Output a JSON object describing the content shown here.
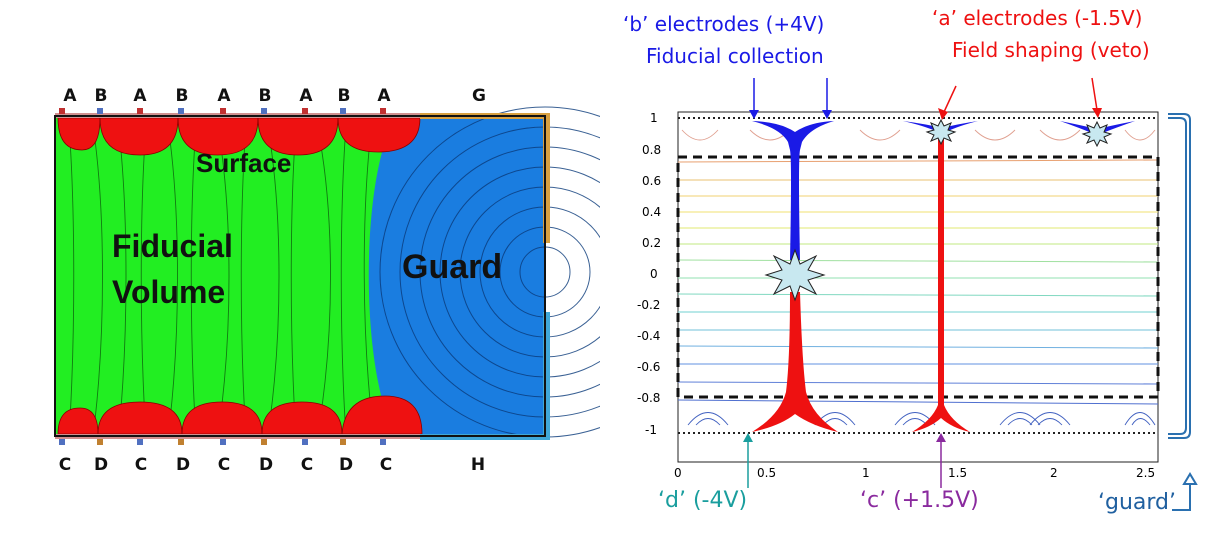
{
  "left_diagram": {
    "top_electrodes": [
      "A",
      "B",
      "A",
      "B",
      "A",
      "B",
      "A",
      "B",
      "A"
    ],
    "top_guard": "G",
    "bottom_electrodes": [
      "C",
      "D",
      "C",
      "D",
      "C",
      "D",
      "C",
      "D",
      "C"
    ],
    "bottom_guard": "H",
    "regions": {
      "surface": "Surface",
      "fiducial_line1": "Fiducial",
      "fiducial_line2": "Volume",
      "guard": "Guard"
    },
    "colors": {
      "fiducial": "#22ee22",
      "guard": "#1a7de0",
      "surface": "#ee1111"
    }
  },
  "right_plot": {
    "b_electrodes_line1": "‘b’ electrodes (+4V)",
    "b_electrodes_line2": "Fiducial collection",
    "a_electrodes_line1": "‘a’ electrodes (-1.5V)",
    "a_electrodes_line2": "Field shaping (veto)",
    "d_label": "‘d’ (-4V)",
    "c_label": "‘c’ (+1.5V)",
    "guard_label": "‘guard’",
    "y_ticks": [
      "1",
      "0.8",
      "0.6",
      "0.4",
      "0.2",
      "0",
      "-0.2",
      "-0.4",
      "-0.6",
      "-0.8",
      "-1"
    ],
    "x_ticks": [
      "0",
      "0.5",
      "1",
      "1.5",
      "2",
      "2.5"
    ],
    "colors": {
      "b": "#1a1ae6",
      "a": "#ee1111",
      "d": "#1a9e9e",
      "c": "#8a2a9e",
      "guard": "#2060a0"
    }
  }
}
